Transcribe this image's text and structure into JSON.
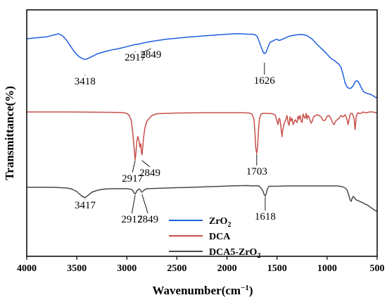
{
  "chart_data": {
    "type": "line",
    "xlabel": "Wavenumber(cm",
    "xlabel_sup": "−1",
    "xlabel_tail": ")",
    "ylabel": "Transmittance(%)",
    "xlim": [
      4000,
      500
    ],
    "x_reversed": true,
    "xticks": [
      4000,
      3500,
      3000,
      2500,
      2000,
      1500,
      1000,
      500
    ],
    "grid": false,
    "legend_position": "bottom-right",
    "series": [
      {
        "name": "ZrO",
        "name_sub": "2",
        "color": "#1f5fe0",
        "x": [
          4000,
          3800,
          3700,
          3680,
          3640,
          3600,
          3560,
          3520,
          3480,
          3440,
          3420,
          3400,
          3380,
          3340,
          3300,
          3250,
          3200,
          3150,
          3100,
          3050,
          3000,
          2960,
          2930,
          2917,
          2905,
          2880,
          2860,
          2849,
          2830,
          2800,
          2750,
          2700,
          2600,
          2500,
          2400,
          2300,
          2200,
          2100,
          2000,
          1900,
          1800,
          1750,
          1720,
          1700,
          1680,
          1660,
          1640,
          1626,
          1610,
          1590,
          1570,
          1550,
          1520,
          1500,
          1480,
          1460,
          1440,
          1420,
          1400,
          1380,
          1350,
          1300,
          1250,
          1200,
          1150,
          1100,
          1050,
          1000,
          960,
          920,
          880,
          860,
          840,
          820,
          800,
          780,
          760,
          740,
          720,
          700,
          680,
          660,
          640,
          620,
          600,
          580,
          560,
          540,
          520,
          500
        ],
        "y": [
          41.0,
          38.3,
          34.6,
          34.0,
          37.0,
          43.5,
          52.2,
          60.2,
          66.2,
          69.5,
          70.3,
          69.8,
          68.5,
          65.7,
          62.8,
          60.5,
          58.5,
          56.8,
          55.6,
          54.0,
          52.2,
          50.8,
          49.5,
          49.4,
          49.0,
          48.6,
          47.8,
          47.5,
          46.9,
          46.0,
          44.7,
          43.6,
          41.6,
          40.2,
          38.9,
          37.8,
          36.6,
          35.6,
          34.6,
          33.8,
          34.5,
          34.6,
          35.3,
          37.5,
          44.0,
          52.0,
          59.5,
          62.2,
          60.5,
          53.0,
          46.0,
          44.8,
          42.5,
          41.9,
          43.4,
          42.6,
          41.4,
          40.0,
          38.8,
          37.6,
          36.5,
          35.4,
          35.0,
          36.6,
          41.4,
          49.0,
          55.8,
          63.0,
          69.1,
          72.7,
          77.5,
          82.0,
          92.0,
          104.0,
          109.5,
          111.6,
          111.0,
          108.0,
          102.0,
          100.4,
          104.0,
          110.0,
          115.5,
          117.5,
          118.6,
          119.5,
          120.5,
          122.0,
          124.0,
          125.0
        ]
      },
      {
        "name": "DCA",
        "color": "#c8504a",
        "x": [
          4000,
          3600,
          3200,
          3050,
          3000,
          2975,
          2955,
          2940,
          2925,
          2917,
          2910,
          2900,
          2890,
          2880,
          2870,
          2860,
          2855,
          2849,
          2842,
          2832,
          2820,
          2800,
          2750,
          2700,
          2500,
          2200,
          2000,
          1850,
          1780,
          1750,
          1730,
          1720,
          1712,
          1703,
          1694,
          1685,
          1675,
          1660,
          1640,
          1600,
          1550,
          1520,
          1500,
          1490,
          1480,
          1470,
          1460,
          1450,
          1445,
          1430,
          1410,
          1400,
          1390,
          1380,
          1370,
          1360,
          1350,
          1340,
          1320,
          1300,
          1290,
          1280,
          1270,
          1260,
          1250,
          1240,
          1230,
          1220,
          1210,
          1200,
          1190,
          1180,
          1170,
          1160,
          1150,
          1140,
          1130,
          1110,
          1100,
          1080,
          1060,
          1040,
          1020,
          1000,
          980,
          960,
          945,
          930,
          915,
          900,
          880,
          860,
          840,
          820,
          800,
          790,
          780,
          770,
          760,
          750,
          740,
          730,
          725,
          720,
          715,
          710,
          700,
          690,
          680,
          660,
          640,
          620,
          600,
          580,
          560,
          540,
          520,
          500
        ],
        "y": [
          145.0,
          145.0,
          145.5,
          145.8,
          147.0,
          150.0,
          158.0,
          176.0,
          200.0,
          213.0,
          204.0,
          186.0,
          180.0,
          185.0,
          195.0,
          190.0,
          202.0,
          206.0,
          196.0,
          180.0,
          168.0,
          158.0,
          150.0,
          147.5,
          146.5,
          146.0,
          146.0,
          146.0,
          146.5,
          148.0,
          155.0,
          175.0,
          196.0,
          204.0,
          195.0,
          170.0,
          154.0,
          148.0,
          147.0,
          147.0,
          147.5,
          149.0,
          158.0,
          163.0,
          154.0,
          156.0,
          168.0,
          180.0,
          172.0,
          162.0,
          155.0,
          150.0,
          160.0,
          164.0,
          152.0,
          158.0,
          154.0,
          163.0,
          156.0,
          160.0,
          151.0,
          155.0,
          150.0,
          158.0,
          160.0,
          148.0,
          152.0,
          154.0,
          147.0,
          155.0,
          150.0,
          152.0,
          157.0,
          161.0,
          159.0,
          154.0,
          151.0,
          150.0,
          149.0,
          150.0,
          152.0,
          157.0,
          157.0,
          151.0,
          150.0,
          155.0,
          160.0,
          163.0,
          158.0,
          156.0,
          154.0,
          150.0,
          152.0,
          149.0,
          156.0,
          163.0,
          155.0,
          148.0,
          147.0,
          147.0,
          150.0,
          156.0,
          163.0,
          170.0,
          163.0,
          152.0,
          148.0,
          146.0,
          147.0,
          147.0,
          145.0,
          146.0,
          146.0,
          145.0,
          145.0,
          145.0,
          146.0,
          146.0
        ]
      },
      {
        "name": "DCA5-ZrO",
        "name_sub": "2",
        "color": "#4a4a4a",
        "x": [
          4000,
          3800,
          3700,
          3600,
          3550,
          3500,
          3470,
          3440,
          3417,
          3400,
          3380,
          3350,
          3300,
          3250,
          3200,
          3100,
          3000,
          2960,
          2940,
          2930,
          2917,
          2905,
          2895,
          2880,
          2870,
          2860,
          2849,
          2838,
          2825,
          2800,
          2700,
          2600,
          2500,
          2400,
          2300,
          2200,
          2100,
          2000,
          1900,
          1800,
          1750,
          1700,
          1680,
          1660,
          1640,
          1628,
          1618,
          1608,
          1595,
          1580,
          1560,
          1530,
          1500,
          1450,
          1400,
          1350,
          1300,
          1200,
          1100,
          1000,
          950,
          900,
          850,
          820,
          800,
          790,
          780,
          770,
          760,
          750,
          740,
          730,
          720,
          700,
          680,
          660,
          640,
          620,
          600,
          580,
          560,
          540,
          520,
          500
        ],
        "y": [
          252.0,
          252.0,
          252.2,
          253.0,
          254.5,
          258.0,
          262.0,
          265.5,
          266.5,
          265.0,
          262.5,
          259.0,
          256.5,
          255.0,
          254.3,
          254.0,
          254.0,
          254.8,
          256.5,
          259.5,
          261.5,
          258.5,
          256.0,
          254.5,
          255.0,
          257.5,
          259.0,
          257.5,
          255.5,
          254.0,
          253.5,
          253.0,
          252.5,
          252.2,
          251.7,
          251.2,
          250.8,
          250.3,
          249.8,
          249.5,
          250.0,
          249.8,
          250.3,
          253.0,
          257.5,
          262.5,
          264.5,
          261.0,
          254.0,
          250.5,
          250.5,
          250.5,
          250.5,
          250.3,
          250.0,
          250.0,
          250.0,
          250.0,
          250.0,
          250.0,
          250.0,
          250.0,
          251.0,
          253.0,
          256.0,
          260.0,
          265.0,
          270.0,
          272.0,
          268.0,
          265.0,
          266.0,
          268.5,
          270.5,
          271.5,
          273.0,
          274.0,
          276.0,
          277.0,
          279.0,
          281.0,
          283.0,
          285.0,
          286.0
        ]
      }
    ],
    "annotations": [
      {
        "label": "3418",
        "series": 0
      },
      {
        "label": "2917",
        "series": 0
      },
      {
        "label": "2849",
        "series": 0
      },
      {
        "label": "1626",
        "series": 0
      },
      {
        "label": "2917",
        "series": 1
      },
      {
        "label": "2849",
        "series": 1
      },
      {
        "label": "1703",
        "series": 1
      },
      {
        "label": "3417",
        "series": 2
      },
      {
        "label": "2917",
        "series": 2
      },
      {
        "label": "2849",
        "series": 2
      },
      {
        "label": "1618",
        "series": 2
      }
    ]
  }
}
